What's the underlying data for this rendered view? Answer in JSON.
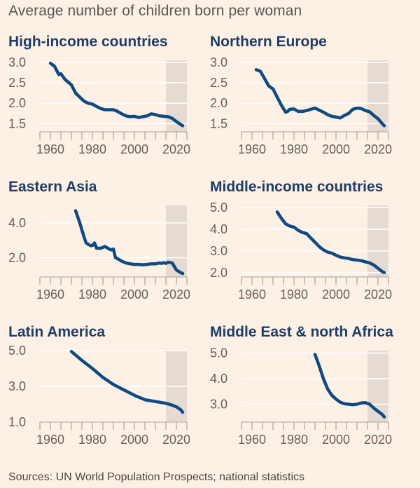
{
  "title": "Average number of children born per woman",
  "source": "Sources: UN World Population Prospects; national statistics",
  "colors": {
    "background": "#fdf1e5",
    "line": "#0f4a82",
    "shade": "#e6dbd2",
    "title": "#1f3d66",
    "grid": "#ffffff",
    "tick": "#a8a29c"
  },
  "chart_data": [
    {
      "type": "line",
      "title": "High-income countries",
      "xlim": [
        1955,
        2025
      ],
      "ylim": [
        1.3,
        3.05
      ],
      "yticks": [
        "3.0",
        "2.5",
        "2.0",
        "1.5"
      ],
      "ytick_values": [
        3.0,
        2.5,
        2.0,
        1.5
      ],
      "xticks": [
        "1960",
        "1980",
        "2000",
        "2020"
      ],
      "xtick_values": [
        1960,
        1980,
        2000,
        2020
      ],
      "shade_range": [
        2015,
        2025
      ],
      "x": [
        1960,
        1962,
        1964,
        1965,
        1967,
        1970,
        1972,
        1974,
        1976,
        1978,
        1980,
        1982,
        1984,
        1986,
        1988,
        1990,
        1992,
        1994,
        1996,
        1998,
        2000,
        2002,
        2004,
        2006,
        2008,
        2010,
        2012,
        2014,
        2016,
        2018,
        2020,
        2022,
        2023
      ],
      "values": [
        2.98,
        2.9,
        2.7,
        2.72,
        2.58,
        2.45,
        2.25,
        2.15,
        2.05,
        2.0,
        1.98,
        1.92,
        1.87,
        1.84,
        1.84,
        1.84,
        1.8,
        1.74,
        1.69,
        1.67,
        1.68,
        1.65,
        1.67,
        1.69,
        1.74,
        1.72,
        1.69,
        1.68,
        1.67,
        1.63,
        1.55,
        1.48,
        1.45
      ]
    },
    {
      "type": "line",
      "title": "Northern Europe",
      "xlim": [
        1955,
        2025
      ],
      "ylim": [
        1.3,
        3.05
      ],
      "yticks": [
        "3.0",
        "2.5",
        "2.0",
        "1.5"
      ],
      "ytick_values": [
        3.0,
        2.5,
        2.0,
        1.5
      ],
      "xticks": [
        "1960",
        "1980",
        "2000",
        "2020"
      ],
      "xtick_values": [
        1960,
        1980,
        2000,
        2020
      ],
      "shade_range": [
        2015,
        2025
      ],
      "x": [
        1962,
        1964,
        1966,
        1968,
        1970,
        1972,
        1974,
        1976,
        1977,
        1978,
        1980,
        1982,
        1984,
        1986,
        1988,
        1990,
        1992,
        1994,
        1996,
        1998,
        2000,
        2002,
        2004,
        2006,
        2008,
        2010,
        2012,
        2014,
        2016,
        2018,
        2020,
        2022,
        2023
      ],
      "values": [
        2.82,
        2.78,
        2.6,
        2.42,
        2.35,
        2.15,
        1.95,
        1.78,
        1.8,
        1.85,
        1.86,
        1.8,
        1.8,
        1.82,
        1.85,
        1.88,
        1.83,
        1.78,
        1.72,
        1.68,
        1.66,
        1.64,
        1.7,
        1.75,
        1.85,
        1.88,
        1.87,
        1.82,
        1.79,
        1.7,
        1.62,
        1.5,
        1.45
      ]
    },
    {
      "type": "line",
      "title": "Eastern Asia",
      "xlim": [
        1955,
        2025
      ],
      "ylim": [
        0.9,
        5.0
      ],
      "yticks": [
        "4.0",
        "2.0"
      ],
      "ytick_values": [
        4.0,
        2.0
      ],
      "xticks": [
        "1960",
        "1980",
        "2000",
        "2020"
      ],
      "xtick_values": [
        1960,
        1980,
        2000,
        2020
      ],
      "shade_range": [
        2015,
        2025
      ],
      "x": [
        1972,
        1974,
        1976,
        1977,
        1979,
        1980,
        1981,
        1982,
        1984,
        1986,
        1988,
        1989,
        1990,
        1991,
        1992,
        1994,
        1996,
        1998,
        2000,
        2002,
        2004,
        2006,
        2008,
        2010,
        2012,
        2013,
        2014,
        2015,
        2016,
        2018,
        2020,
        2022,
        2023
      ],
      "values": [
        4.7,
        4.0,
        3.2,
        2.85,
        2.7,
        2.7,
        2.85,
        2.55,
        2.55,
        2.65,
        2.5,
        2.45,
        2.5,
        2.0,
        1.95,
        1.8,
        1.7,
        1.65,
        1.62,
        1.62,
        1.6,
        1.62,
        1.65,
        1.65,
        1.7,
        1.68,
        1.72,
        1.68,
        1.75,
        1.7,
        1.3,
        1.15,
        1.1
      ]
    },
    {
      "type": "line",
      "title": "Middle-income countries",
      "xlim": [
        1955,
        2025
      ],
      "ylim": [
        1.8,
        5.1
      ],
      "yticks": [
        "5.0",
        "4.0",
        "3.0",
        "2.0"
      ],
      "ytick_values": [
        5.0,
        4.0,
        3.0,
        2.0
      ],
      "xticks": [
        "1960",
        "1980",
        "2000",
        "2020"
      ],
      "xtick_values": [
        1960,
        1980,
        2000,
        2020
      ],
      "shade_range": [
        2015,
        2025
      ],
      "x": [
        1972,
        1974,
        1976,
        1978,
        1980,
        1982,
        1984,
        1986,
        1988,
        1990,
        1992,
        1994,
        1996,
        1998,
        2000,
        2002,
        2004,
        2006,
        2008,
        2010,
        2012,
        2014,
        2016,
        2018,
        2020,
        2022,
        2023
      ],
      "values": [
        4.8,
        4.5,
        4.25,
        4.15,
        4.1,
        3.95,
        3.85,
        3.8,
        3.6,
        3.4,
        3.2,
        3.05,
        2.95,
        2.9,
        2.8,
        2.72,
        2.68,
        2.65,
        2.6,
        2.58,
        2.55,
        2.5,
        2.45,
        2.35,
        2.2,
        2.05,
        2.0
      ]
    },
    {
      "type": "line",
      "title": "Latin America",
      "xlim": [
        1955,
        2025
      ],
      "ylim": [
        1.0,
        5.0
      ],
      "yticks": [
        "5.0",
        "3.0",
        "1.0"
      ],
      "ytick_values": [
        5.0,
        3.0,
        1.0
      ],
      "xticks": [
        "1960",
        "1980",
        "2000",
        "2020"
      ],
      "xtick_values": [
        1960,
        1980,
        2000,
        2020
      ],
      "shade_range": [
        2015,
        2025
      ],
      "x": [
        1970,
        1975,
        1980,
        1985,
        1990,
        1995,
        2000,
        2005,
        2010,
        2015,
        2018,
        2020,
        2022,
        2023
      ],
      "values": [
        4.95,
        4.45,
        4.0,
        3.5,
        3.1,
        2.8,
        2.5,
        2.25,
        2.15,
        2.05,
        1.95,
        1.85,
        1.7,
        1.55
      ]
    },
    {
      "type": "line",
      "title": "Middle East & north Africa",
      "xlim": [
        1955,
        2025
      ],
      "ylim": [
        2.3,
        5.1
      ],
      "yticks": [
        "5.0",
        "4.0",
        "3.0"
      ],
      "ytick_values": [
        5.0,
        4.0,
        3.0
      ],
      "xticks": [
        "1960",
        "1980",
        "2000",
        "2020"
      ],
      "xtick_values": [
        1960,
        1980,
        2000,
        2020
      ],
      "shade_range": [
        2015,
        2025
      ],
      "x": [
        1990,
        1992,
        1994,
        1996,
        1998,
        2000,
        2002,
        2004,
        2006,
        2008,
        2010,
        2012,
        2014,
        2016,
        2018,
        2020,
        2022,
        2023
      ],
      "values": [
        4.95,
        4.5,
        4.0,
        3.6,
        3.35,
        3.2,
        3.08,
        3.02,
        3.0,
        2.98,
        3.0,
        3.05,
        3.06,
        3.0,
        2.85,
        2.72,
        2.6,
        2.5
      ]
    }
  ]
}
